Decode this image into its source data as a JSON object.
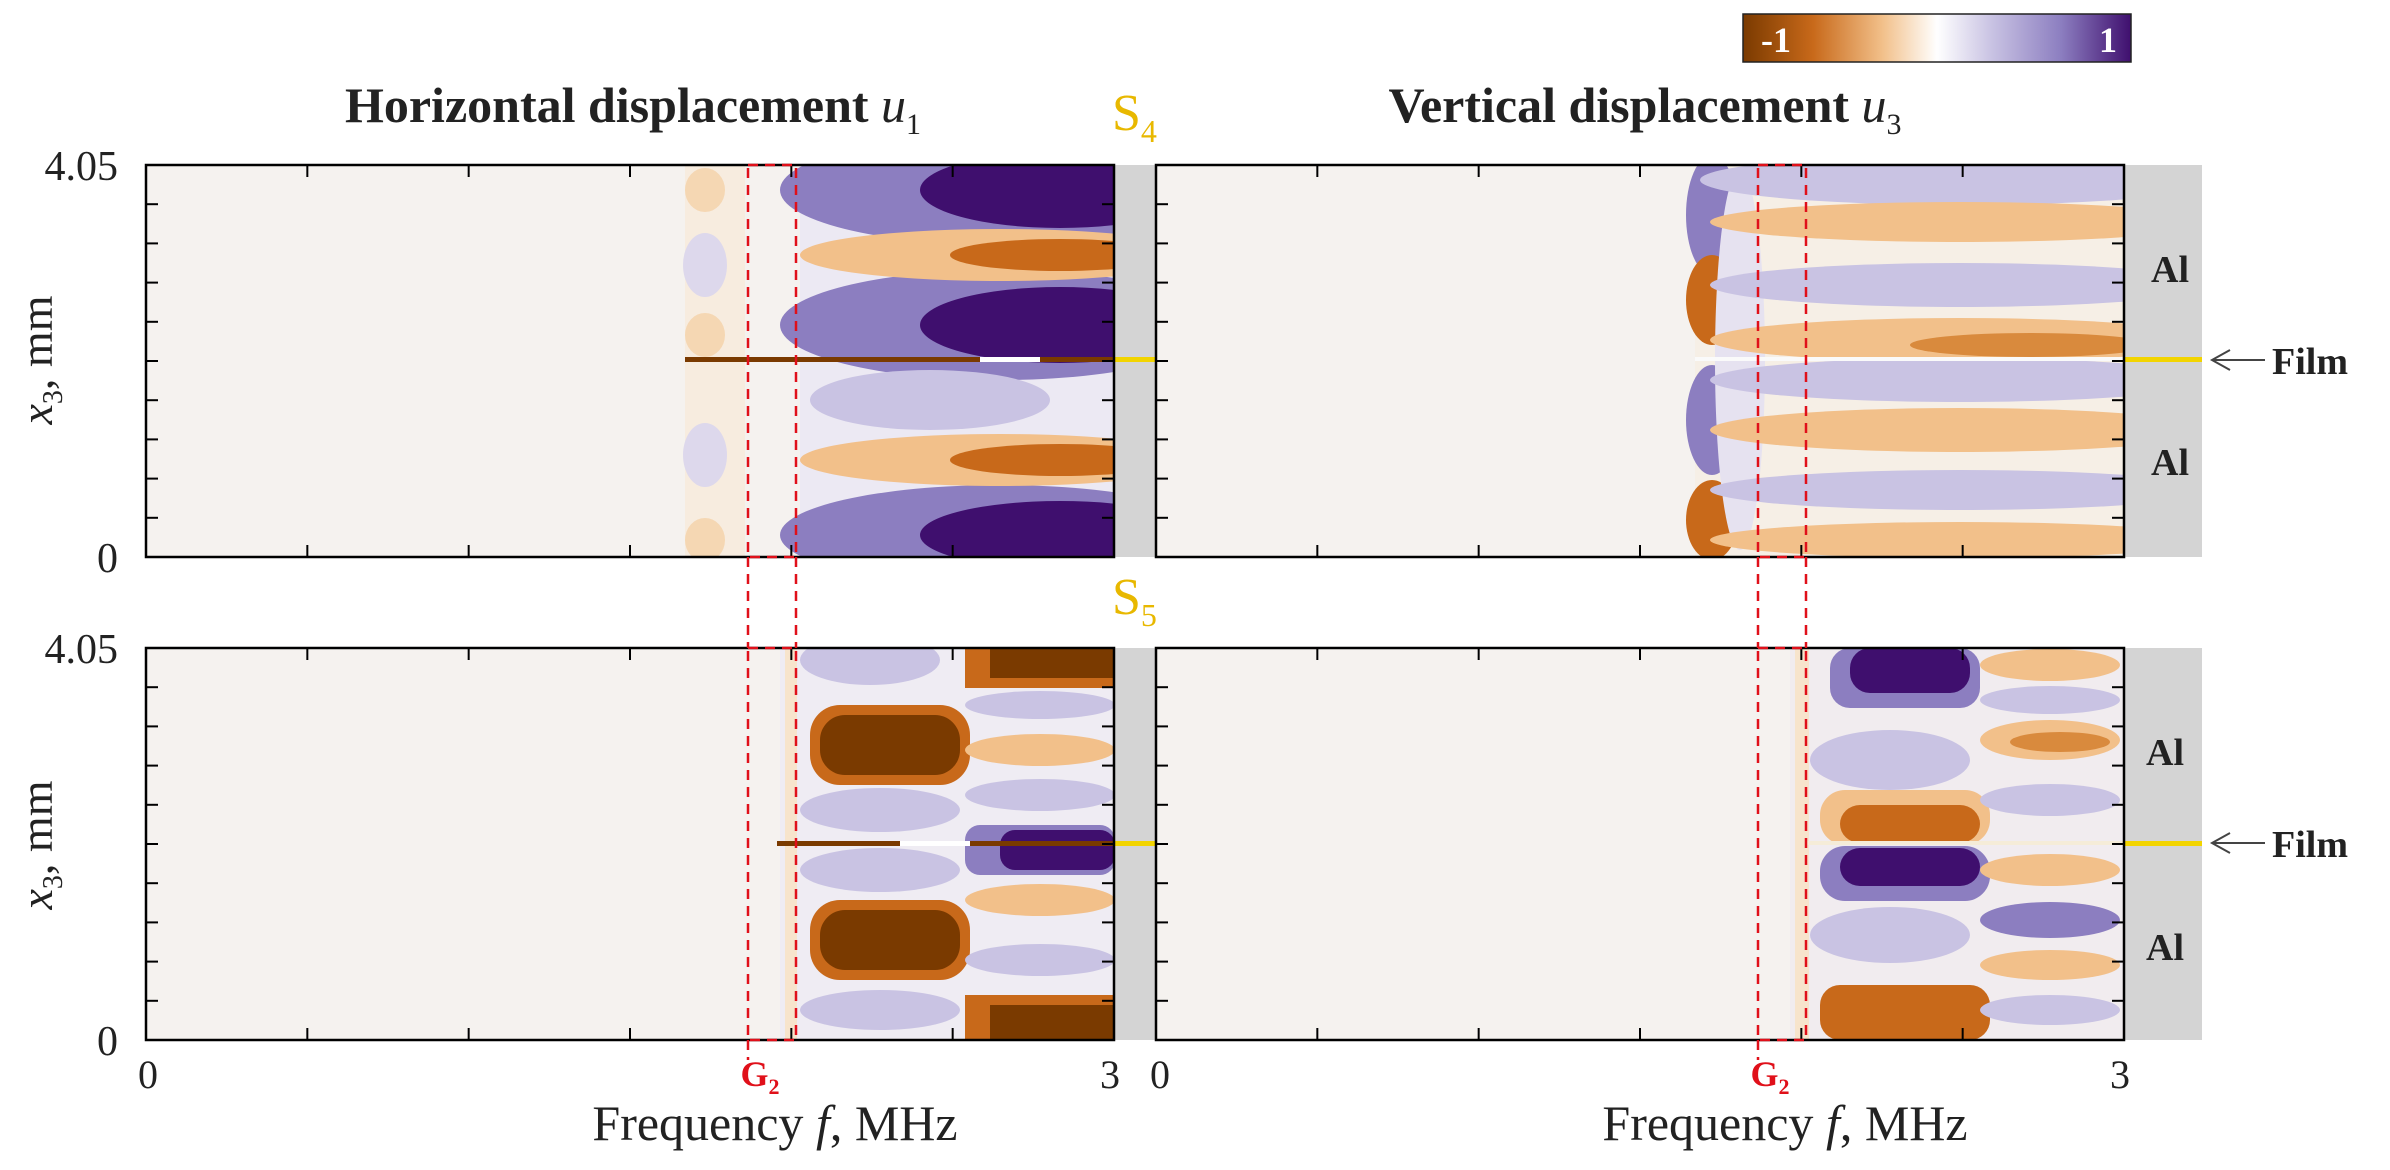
{
  "chart_data": {
    "type": "heatmap",
    "colorbar": {
      "min_label": "-1",
      "max_label": "1",
      "colors": [
        "#7a3a00",
        "#c8691a",
        "#f2c08a",
        "#ffffff",
        "#c9c3e3",
        "#8c7ec0",
        "#3f0f6e"
      ]
    },
    "shared_x": {
      "xlabel_main": "Frequency ",
      "xlabel_var": "f",
      "xlabel_unit": ", MHz",
      "tick_min_label": "0",
      "tick_max_label": "3",
      "xlim": [
        0,
        3
      ]
    },
    "shared_y": {
      "ylabel_var": "x",
      "ylabel_sub": "3",
      "ylabel_unit": ", mm",
      "tick_max_label": "4.05",
      "tick_min_label": "0",
      "ylim": [
        0,
        4.05
      ]
    },
    "columns": [
      {
        "title_text": "Horizontal displacement ",
        "title_var": "u",
        "title_sub": "1"
      },
      {
        "title_text": "Vertical displacement ",
        "title_var": "u",
        "title_sub": "3"
      }
    ],
    "rows": [
      {
        "mode_letter": "S",
        "mode_sub": "4"
      },
      {
        "mode_letter": "S",
        "mode_sub": "5"
      }
    ],
    "gap_label": {
      "letter": "G",
      "sub": "2"
    },
    "layer_labels": {
      "top": "Al",
      "bottom": "Al",
      "interface": "Film"
    },
    "colors": {
      "mode_label": "#e8b800",
      "gap_label": "#e0101a",
      "film_line": "#f2d400",
      "layer_strip": "#d4d4d4",
      "background_field": "#f5f2ef"
    },
    "film_position_mm": 2.025,
    "gap_band_mhz": [
      1.86,
      2.02
    ],
    "panels": [
      {
        "name": "S4 u1",
        "onset_mhz": 1.66,
        "layer_regions": 1
      },
      {
        "name": "S4 u3",
        "onset_mhz": 1.66,
        "layer_regions": 1
      },
      {
        "name": "S5 u1",
        "onset_mhz": 1.95,
        "jump_mhz": 2.5,
        "layer_regions": 2
      },
      {
        "name": "S5 u3",
        "onset_mhz": 1.95,
        "jump_mhz": 2.5,
        "layer_regions": 2
      }
    ]
  }
}
